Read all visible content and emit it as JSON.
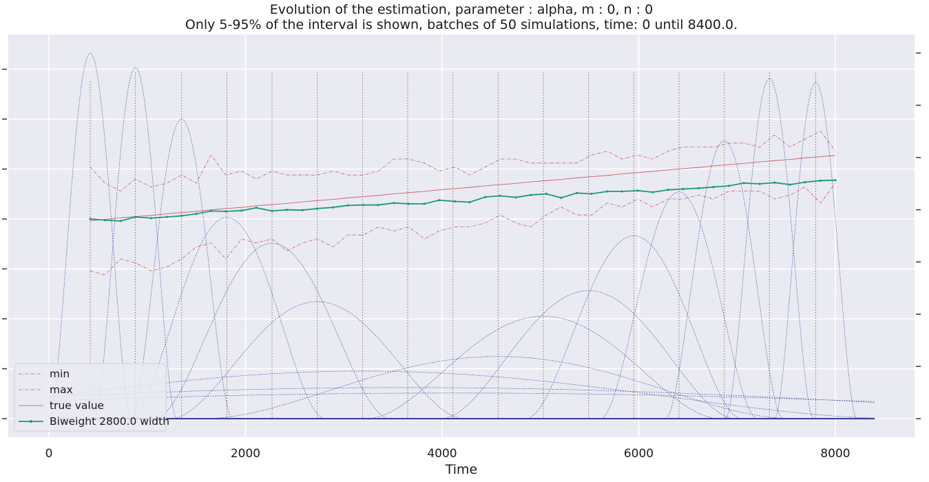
{
  "chart_data": {
    "type": "line",
    "title": "Evolution of the estimation, parameter : alpha, m : 0, n : 0",
    "subtitle": "Only 5-95% of the interval is shown, batches of 50 simulations, time: 0 until 8400.0.",
    "xlabel": "Time",
    "ylabel": "",
    "xlim": [
      -400,
      8800
    ],
    "xticks": [
      0,
      2000,
      4000,
      6000,
      8000
    ],
    "grid": true,
    "legend_position": "bottom-left",
    "colors": {
      "min": "#c44e52",
      "max": "#c44e52",
      "true_value": "#c44e52",
      "estimate": "#1a9a78",
      "kernel": "#3b3b9a",
      "batch_line": "#909090",
      "background": "#eaeaf2",
      "grid": "#ffffff"
    },
    "x": [
      420,
      570,
      730,
      880,
      1040,
      1200,
      1350,
      1500,
      1650,
      1800,
      1960,
      2110,
      2270,
      2420,
      2580,
      2730,
      2890,
      3040,
      3200,
      3350,
      3510,
      3660,
      3820,
      3970,
      4130,
      4280,
      4440,
      4590,
      4750,
      4900,
      5060,
      5210,
      5370,
      5520,
      5680,
      5830,
      5990,
      6140,
      6300,
      6450,
      6610,
      6760,
      6920,
      7070,
      7230,
      7380,
      7540,
      7690,
      7850,
      8000
    ],
    "series": [
      {
        "name": "min",
        "style": "dashdot",
        "values": [
          0.37,
          0.36,
          0.4,
          0.39,
          0.37,
          0.38,
          0.4,
          0.43,
          0.44,
          0.4,
          0.45,
          0.44,
          0.45,
          0.42,
          0.44,
          0.45,
          0.43,
          0.46,
          0.46,
          0.48,
          0.47,
          0.48,
          0.45,
          0.47,
          0.48,
          0.48,
          0.49,
          0.51,
          0.49,
          0.48,
          0.51,
          0.53,
          0.51,
          0.51,
          0.54,
          0.53,
          0.55,
          0.53,
          0.55,
          0.55,
          0.56,
          0.55,
          0.57,
          0.57,
          0.57,
          0.55,
          0.56,
          0.58,
          0.54,
          0.59
        ]
      },
      {
        "name": "max",
        "style": "dashdot",
        "values": [
          0.63,
          0.59,
          0.57,
          0.6,
          0.58,
          0.59,
          0.61,
          0.59,
          0.66,
          0.61,
          0.62,
          0.6,
          0.62,
          0.61,
          0.61,
          0.61,
          0.62,
          0.61,
          0.61,
          0.62,
          0.65,
          0.65,
          0.64,
          0.62,
          0.63,
          0.61,
          0.63,
          0.65,
          0.65,
          0.64,
          0.64,
          0.64,
          0.64,
          0.66,
          0.67,
          0.65,
          0.66,
          0.65,
          0.67,
          0.68,
          0.68,
          0.68,
          0.69,
          0.69,
          0.68,
          0.71,
          0.68,
          0.7,
          0.72,
          0.67
        ]
      },
      {
        "name": "true value",
        "style": "solid",
        "values": [
          0.496,
          0.499,
          0.503,
          0.506,
          0.509,
          0.513,
          0.516,
          0.519,
          0.523,
          0.526,
          0.529,
          0.533,
          0.536,
          0.539,
          0.543,
          0.546,
          0.549,
          0.553,
          0.556,
          0.559,
          0.563,
          0.566,
          0.569,
          0.573,
          0.576,
          0.579,
          0.583,
          0.586,
          0.589,
          0.593,
          0.596,
          0.599,
          0.603,
          0.606,
          0.609,
          0.613,
          0.616,
          0.619,
          0.623,
          0.626,
          0.629,
          0.633,
          0.636,
          0.639,
          0.643,
          0.646,
          0.649,
          0.653,
          0.656,
          0.659
        ]
      },
      {
        "name": "Biweight 2800.0 width",
        "style": "solid-marker",
        "values": [
          0.5,
          0.497,
          0.495,
          0.505,
          0.502,
          0.505,
          0.508,
          0.513,
          0.52,
          0.519,
          0.521,
          0.528,
          0.52,
          0.523,
          0.522,
          0.526,
          0.529,
          0.534,
          0.535,
          0.535,
          0.54,
          0.538,
          0.538,
          0.547,
          0.544,
          0.542,
          0.555,
          0.558,
          0.554,
          0.56,
          0.563,
          0.553,
          0.565,
          0.563,
          0.569,
          0.569,
          0.571,
          0.567,
          0.573,
          0.575,
          0.577,
          0.58,
          0.583,
          0.59,
          0.588,
          0.591,
          0.586,
          0.592,
          0.596,
          0.597
        ]
      }
    ],
    "batch_times": [
      420,
      880,
      1350,
      1810,
      2270,
      2730,
      3190,
      3650,
      4110,
      4570,
      5030,
      5490,
      5950,
      6410,
      6870,
      7330,
      7800
    ],
    "kernels": [
      {
        "center": 420,
        "halfwidth": 420,
        "peak": 1.0
      },
      {
        "center": 880,
        "halfwidth": 420,
        "peak": 0.96
      },
      {
        "center": 1350,
        "halfwidth": 520,
        "peak": 0.82
      },
      {
        "center": 1810,
        "halfwidth": 1000,
        "peak": 0.55
      },
      {
        "center": 2270,
        "halfwidth": 1200,
        "peak": 0.48
      },
      {
        "center": 2730,
        "halfwidth": 1500,
        "peak": 0.32
      },
      {
        "center": 3190,
        "halfwidth": 5500,
        "peak": 0.13
      },
      {
        "center": 3650,
        "halfwidth": 9000,
        "peak": 0.085
      },
      {
        "center": 4110,
        "halfwidth": 10000,
        "peak": 0.07
      },
      {
        "center": 4570,
        "halfwidth": 3000,
        "peak": 0.17
      },
      {
        "center": 5030,
        "halfwidth": 1800,
        "peak": 0.28
      },
      {
        "center": 5490,
        "halfwidth": 1500,
        "peak": 0.35
      },
      {
        "center": 5950,
        "halfwidth": 1100,
        "peak": 0.5
      },
      {
        "center": 6410,
        "halfwidth": 800,
        "peak": 0.62
      },
      {
        "center": 6870,
        "halfwidth": 600,
        "peak": 0.76
      },
      {
        "center": 7330,
        "halfwidth": 450,
        "peak": 0.93
      },
      {
        "center": 7800,
        "halfwidth": 420,
        "peak": 0.92
      }
    ]
  }
}
